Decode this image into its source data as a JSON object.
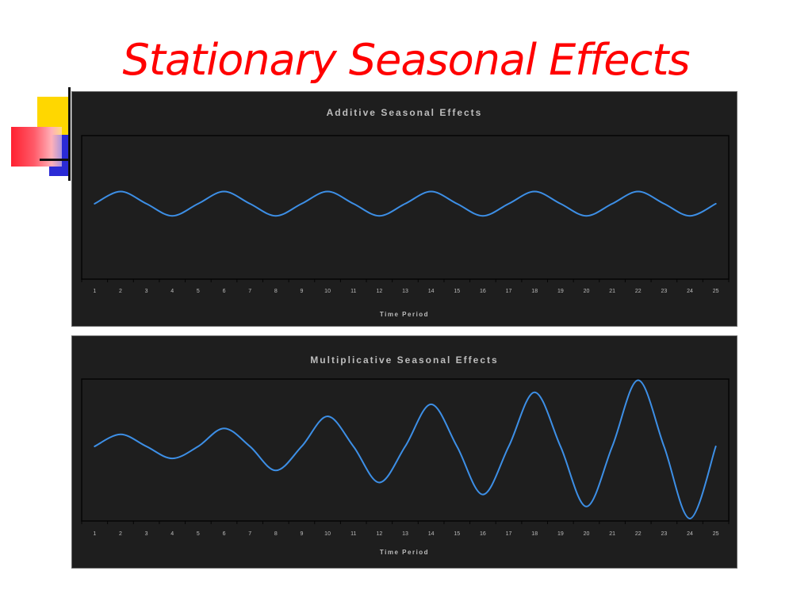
{
  "slide": {
    "title": "Stationary Seasonal Effects"
  },
  "colors": {
    "title": "#ff0000",
    "line": "#3d8fe6",
    "chart_bg": "#1e1e1e",
    "text": "#bdbdbd"
  },
  "chart_data": [
    {
      "type": "line",
      "title": "Additive Seasonal Effects",
      "xlabel": "Time Period",
      "ylabel": "",
      "x": [
        1,
        2,
        3,
        4,
        5,
        6,
        7,
        8,
        9,
        10,
        11,
        12,
        13,
        14,
        15,
        16,
        17,
        18,
        19,
        20,
        21,
        22,
        23,
        24,
        25
      ],
      "series": [
        {
          "values": [
            0,
            1,
            0,
            -1,
            0,
            1,
            0,
            -1,
            0,
            1,
            0,
            -1,
            0,
            1,
            0,
            -1,
            0,
            1,
            0,
            -1,
            0,
            1,
            0,
            -1,
            0
          ]
        }
      ],
      "ylim": [
        -6.2,
        5.6
      ],
      "grid": false,
      "legend": "none"
    },
    {
      "type": "line",
      "title": "Multiplicative Seasonal Effects",
      "xlabel": "Time Period",
      "ylabel": "",
      "x": [
        1,
        2,
        3,
        4,
        5,
        6,
        7,
        8,
        9,
        10,
        11,
        12,
        13,
        14,
        15,
        16,
        17,
        18,
        19,
        20,
        21,
        22,
        23,
        24,
        25
      ],
      "series": [
        {
          "values": [
            0,
            1,
            0,
            -1,
            0,
            1.5,
            0,
            -2,
            0,
            2.5,
            0,
            -3,
            0,
            3.5,
            0,
            -4,
            0,
            4.5,
            0,
            -5,
            0,
            5.5,
            0,
            -6,
            0
          ]
        }
      ],
      "ylim": [
        -6.2,
        5.6
      ],
      "grid": false,
      "legend": "none"
    }
  ]
}
